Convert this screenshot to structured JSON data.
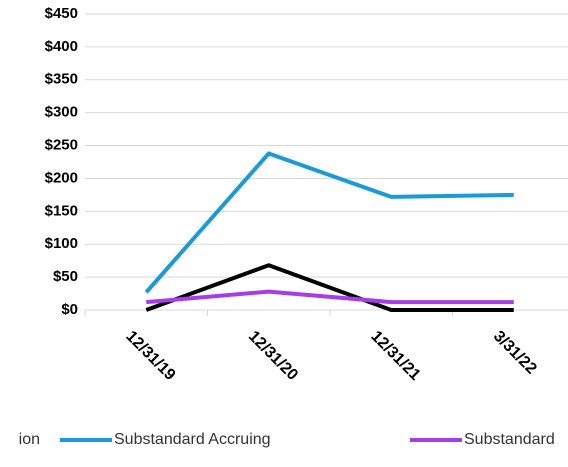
{
  "chart_data": {
    "type": "line",
    "categories": [
      "12/31/19",
      "12/31/20",
      "12/31/21",
      "3/31/22"
    ],
    "series": [
      {
        "name": "ion",
        "color": "#000000",
        "values": [
          0,
          68,
          0,
          0
        ]
      },
      {
        "name": "Substandard Accruing",
        "color": "#1a9ad6",
        "values": [
          27,
          238,
          172,
          175
        ]
      },
      {
        "name": "Substandard",
        "color": "#a53ee8",
        "values": [
          12,
          28,
          12,
          12
        ]
      }
    ],
    "ylim": [
      0,
      450
    ],
    "yticks": [
      {
        "value": 0,
        "label": "$0"
      },
      {
        "value": 50,
        "label": "$50"
      },
      {
        "value": 100,
        "label": "$100"
      },
      {
        "value": 150,
        "label": "$150"
      },
      {
        "value": 200,
        "label": "$200"
      },
      {
        "value": 250,
        "label": "$250"
      },
      {
        "value": 300,
        "label": "$300"
      },
      {
        "value": 350,
        "label": "$350"
      },
      {
        "value": 400,
        "label": "$400"
      },
      {
        "value": 450,
        "label": "$450"
      }
    ],
    "grid": true
  }
}
